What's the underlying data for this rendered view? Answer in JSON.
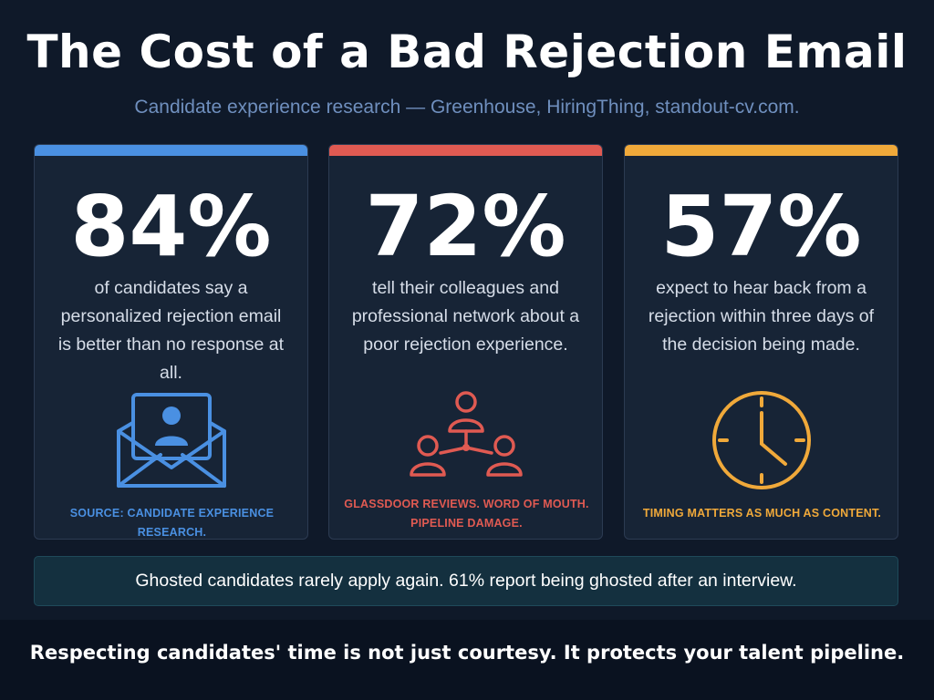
{
  "title": "The Cost of a Bad Rejection Email",
  "subtitle": "Candidate experience research — Greenhouse, HiringThing, standout-cv.com.",
  "cards": [
    {
      "stat": "84%",
      "description": "of candidates say a personalized rejection email is better than no response at all.",
      "caption": "SOURCE: CANDIDATE EXPERIENCE RESEARCH.",
      "accent": "#4a90e2",
      "icon": "envelope-person-icon"
    },
    {
      "stat": "72%",
      "description": "tell their colleagues and professional network about a poor rejection experience.",
      "caption": "GLASSDOOR REVIEWS. WORD OF MOUTH. PIPELINE DAMAGE.",
      "accent": "#e05a52",
      "icon": "network-people-icon"
    },
    {
      "stat": "57%",
      "description": "expect to hear back from a rejection within three days of the decision being made.",
      "caption": "TIMING MATTERS AS MUCH AS CONTENT.",
      "accent": "#f0a93a",
      "icon": "clock-icon"
    }
  ],
  "banner": "Ghosted candidates rarely apply again. 61% report being ghosted after an interview.",
  "footer": "Respecting candidates' time is not just courtesy. It protects your talent pipeline."
}
